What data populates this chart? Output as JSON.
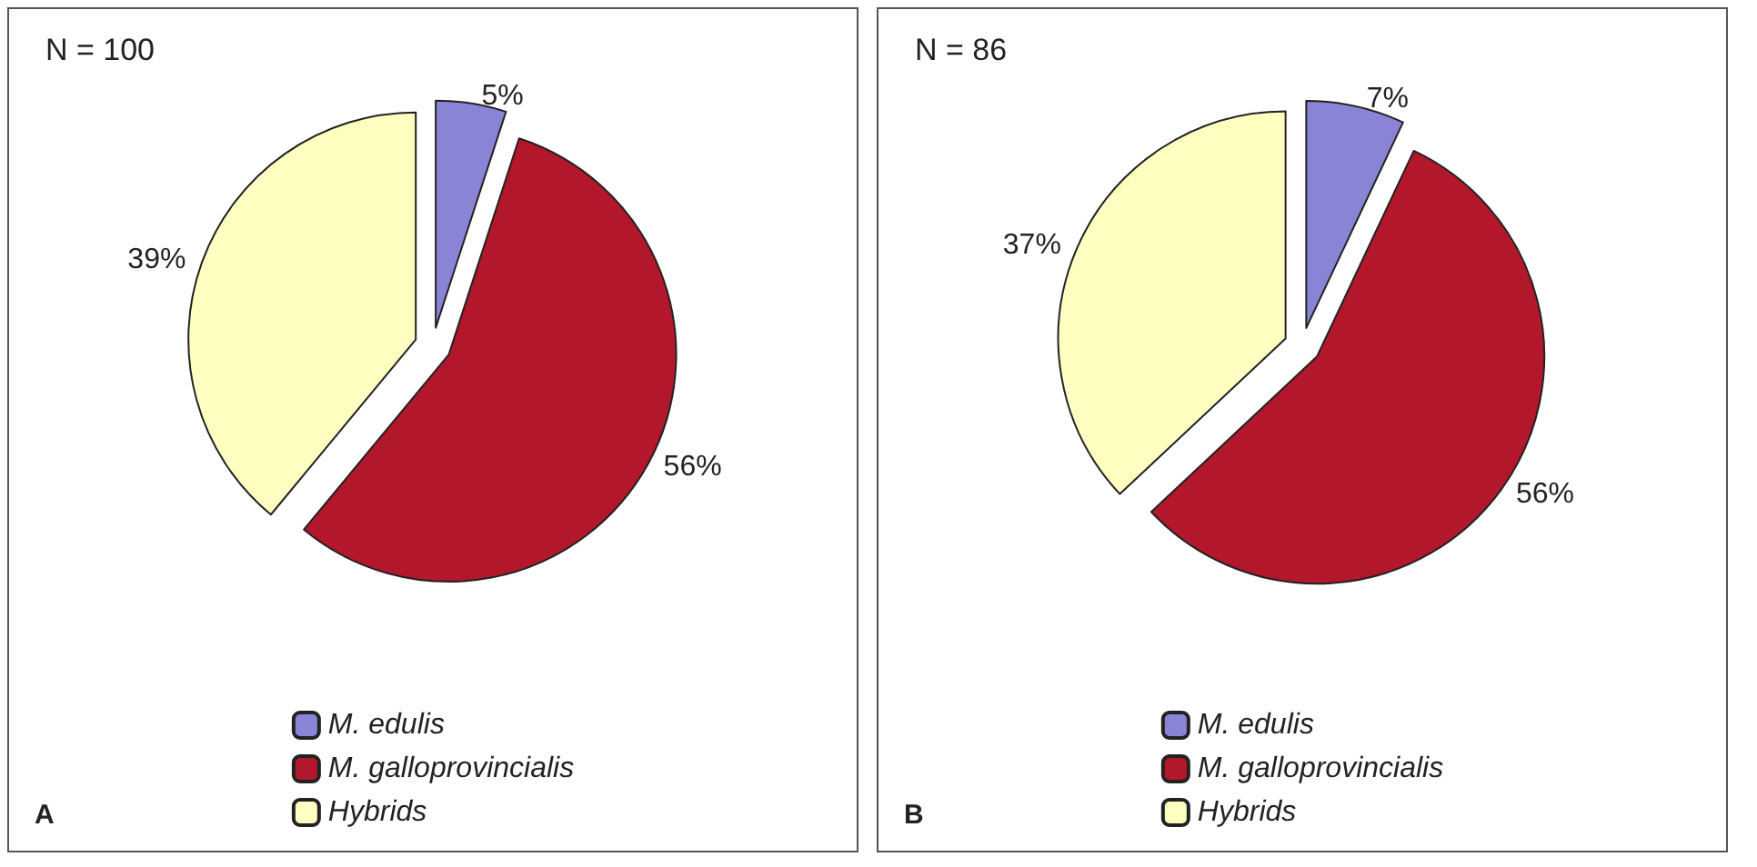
{
  "chart_data": [
    {
      "type": "pie",
      "categories": [
        "M. edulis",
        "M. galloprovincialis",
        "Hybrids"
      ],
      "values": [
        5,
        56,
        39
      ],
      "colors": [
        "#8a84d6",
        "#b3172b",
        "#ffffc2"
      ],
      "value_labels": [
        "5%",
        "56%",
        "39%"
      ],
      "legend": "bottom",
      "annotations": [
        "N = 100",
        "A"
      ]
    },
    {
      "type": "pie",
      "categories": [
        "M. edulis",
        "M. galloprovincialis",
        "Hybrids"
      ],
      "values": [
        7,
        56,
        37
      ],
      "colors": [
        "#8a84d6",
        "#b3172b",
        "#ffffc2"
      ],
      "value_labels": [
        "7%",
        "56%",
        "37%"
      ],
      "legend": "bottom",
      "annotations": [
        "N = 86",
        "B"
      ]
    }
  ]
}
